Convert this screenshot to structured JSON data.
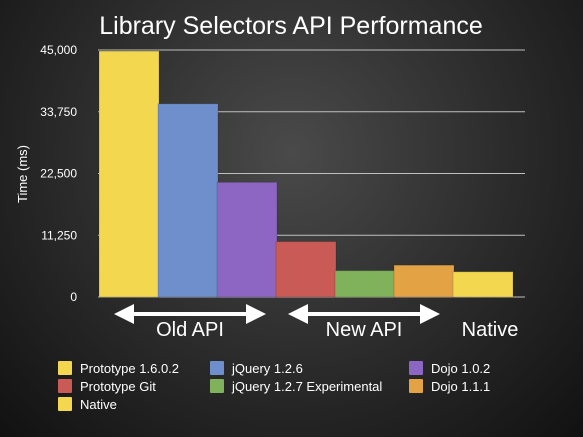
{
  "chart_data": {
    "type": "bar",
    "title": "Library Selectors API Performance",
    "ylabel": "Time (ms)",
    "xlabel": "",
    "ylim": [
      0,
      45000
    ],
    "yticks": [
      "45,000",
      "33,750",
      "22,500",
      "11,250",
      "0"
    ],
    "ytick_values": [
      45000,
      33750,
      22500,
      11250,
      0
    ],
    "grid": true,
    "legend_position": "bottom",
    "series": [
      {
        "name": "Prototype 1.6.0.2",
        "value": 44800,
        "color": "#f3d74e"
      },
      {
        "name": "jQuery 1.2.6",
        "value": 35200,
        "color": "#6f8fcc"
      },
      {
        "name": "Dojo 1.0.2",
        "value": 20900,
        "color": "#8d66c4"
      },
      {
        "name": "Prototype Git",
        "value": 10100,
        "color": "#c95a56"
      },
      {
        "name": "jQuery 1.2.7 Experimental",
        "value": 4800,
        "color": "#7fb25a"
      },
      {
        "name": "Dojo 1.1.1",
        "value": 5800,
        "color": "#e3a244"
      },
      {
        "name": "Native",
        "value": 4600,
        "color": "#f3d74e"
      }
    ],
    "groups": [
      {
        "label": "Old API",
        "arrow": true
      },
      {
        "label": "New API",
        "arrow": true
      },
      {
        "label": "Native",
        "arrow": false
      }
    ]
  }
}
